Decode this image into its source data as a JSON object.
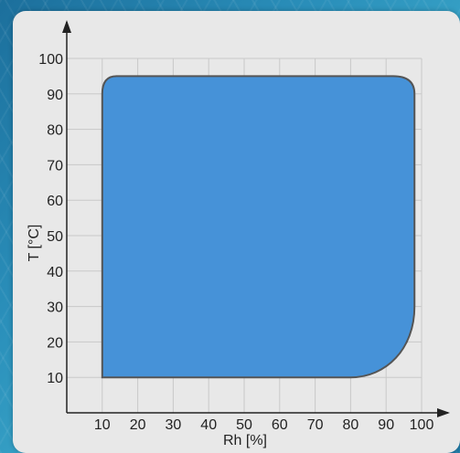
{
  "chart_data": {
    "type": "area",
    "xlabel": "Rh [%]",
    "ylabel": "T [°C]",
    "xlim": [
      0,
      100
    ],
    "ylim": [
      0,
      100
    ],
    "x_ticks": [
      10,
      20,
      30,
      40,
      50,
      60,
      70,
      80,
      90,
      100
    ],
    "y_ticks": [
      10,
      20,
      30,
      40,
      50,
      60,
      70,
      80,
      90,
      100
    ],
    "grid": true,
    "fill_color": "#4692d8",
    "outline_color": "#555555",
    "region_vertices": [
      {
        "x": 10,
        "y": 10
      },
      {
        "x": 80,
        "y": 10
      },
      {
        "x": 98,
        "y": 30
      },
      {
        "x": 98,
        "y": 90
      },
      {
        "x": 92,
        "y": 95
      },
      {
        "x": 14,
        "y": 95
      },
      {
        "x": 10,
        "y": 90
      }
    ]
  }
}
